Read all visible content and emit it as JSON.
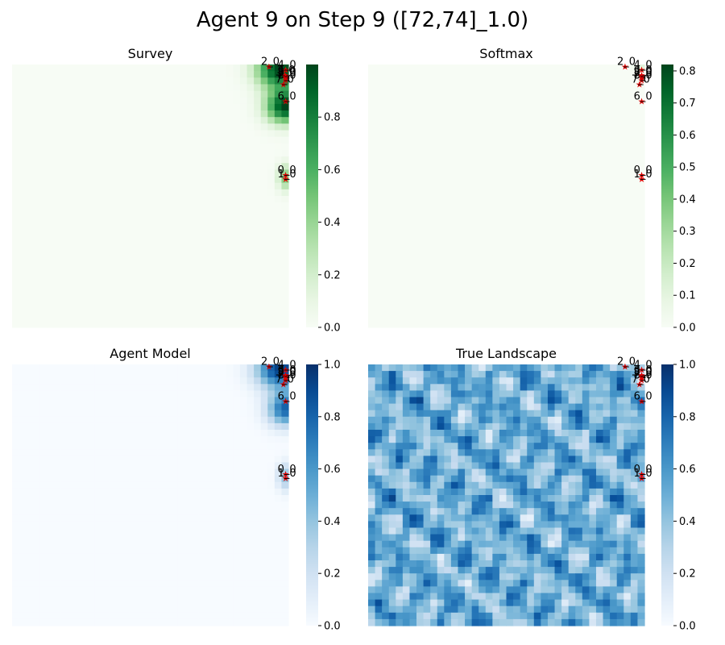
{
  "figure": {
    "title": "Agent 9 on Step 9 ([72,74]_1.0)"
  },
  "chart_data": [
    {
      "type": "heatmap",
      "title": "Survey",
      "colormap": "Greens",
      "colorbar_ticks": [
        "0.0",
        "0.2",
        "0.4",
        "0.6",
        "0.8"
      ],
      "colorbar_range": [
        0,
        1
      ],
      "tick_values": [
        0,
        0.2,
        0.4,
        0.6,
        0.8
      ],
      "blobs": [
        {
          "x": 0.97,
          "y": 0.02,
          "sx": 0.06,
          "sy": 0.05,
          "a": 1.0
        },
        {
          "x": 0.99,
          "y": 0.16,
          "sx": 0.05,
          "sy": 0.045,
          "a": 1.0
        },
        {
          "x": 0.99,
          "y": 0.43,
          "sx": 0.02,
          "sy": 0.035,
          "a": 0.45
        }
      ],
      "markers": [
        {
          "label": "2_0",
          "x": 0.93,
          "y": 0.008
        },
        {
          "label": "3_0",
          "x": 0.987,
          "y": 0.04
        },
        {
          "label": "4_0",
          "x": 0.99,
          "y": 0.02
        },
        {
          "label": "5_0",
          "x": 0.99,
          "y": 0.05
        },
        {
          "label": "8_0",
          "x": 0.99,
          "y": 0.06
        },
        {
          "label": "9_0",
          "x": 0.99,
          "y": 0.045
        },
        {
          "label": "7_0",
          "x": 0.982,
          "y": 0.075
        },
        {
          "label": "6_0",
          "x": 0.99,
          "y": 0.14
        },
        {
          "label": "0_0",
          "x": 0.99,
          "y": 0.42
        },
        {
          "label": "1_0",
          "x": 0.99,
          "y": 0.435
        }
      ]
    },
    {
      "type": "heatmap",
      "title": "Softmax",
      "colormap": "Greens",
      "colorbar_ticks": [
        "0.0",
        "0.1",
        "0.2",
        "0.3",
        "0.4",
        "0.5",
        "0.6",
        "0.7",
        "0.8"
      ],
      "colorbar_range": [
        0,
        0.82
      ],
      "tick_values": [
        0,
        0.1,
        0.2,
        0.3,
        0.4,
        0.5,
        0.6,
        0.7,
        0.8
      ],
      "blobs": [
        {
          "x": 0.985,
          "y": 0.015,
          "sx": 0.012,
          "sy": 0.012,
          "a": 0.15
        }
      ],
      "markers": [
        {
          "label": "2_0",
          "x": 0.93,
          "y": 0.008
        },
        {
          "label": "3_0",
          "x": 0.99,
          "y": 0.04
        },
        {
          "label": "4_0",
          "x": 0.99,
          "y": 0.02
        },
        {
          "label": "5_0",
          "x": 0.99,
          "y": 0.05
        },
        {
          "label": "8_0",
          "x": 0.99,
          "y": 0.06
        },
        {
          "label": "9_0",
          "x": 0.99,
          "y": 0.045
        },
        {
          "label": "7_0",
          "x": 0.982,
          "y": 0.075
        },
        {
          "label": "6_0",
          "x": 0.99,
          "y": 0.14
        },
        {
          "label": "0_0",
          "x": 0.99,
          "y": 0.42
        },
        {
          "label": "1_0",
          "x": 0.99,
          "y": 0.435
        }
      ]
    },
    {
      "type": "heatmap",
      "title": "Agent Model",
      "colormap": "Blues",
      "colorbar_ticks": [
        "0.0",
        "0.2",
        "0.4",
        "0.6",
        "0.8",
        "1.0"
      ],
      "colorbar_range": [
        0,
        1
      ],
      "tick_values": [
        0,
        0.2,
        0.4,
        0.6,
        0.8,
        1.0
      ],
      "blobs": [
        {
          "x": 0.97,
          "y": 0.02,
          "sx": 0.06,
          "sy": 0.05,
          "a": 0.95
        },
        {
          "x": 0.99,
          "y": 0.17,
          "sx": 0.045,
          "sy": 0.045,
          "a": 0.8
        },
        {
          "x": 0.99,
          "y": 0.43,
          "sx": 0.02,
          "sy": 0.035,
          "a": 0.4
        }
      ],
      "markers": [
        {
          "label": "2_0",
          "x": 0.93,
          "y": 0.008
        },
        {
          "label": "3_0",
          "x": 0.99,
          "y": 0.04
        },
        {
          "label": "4_0",
          "x": 0.99,
          "y": 0.02
        },
        {
          "label": "5_0",
          "x": 0.99,
          "y": 0.05
        },
        {
          "label": "8_0",
          "x": 0.99,
          "y": 0.06
        },
        {
          "label": "9_0",
          "x": 0.99,
          "y": 0.045
        },
        {
          "label": "7_0",
          "x": 0.982,
          "y": 0.075
        },
        {
          "label": "6_0",
          "x": 0.99,
          "y": 0.14
        },
        {
          "label": "0_0",
          "x": 0.99,
          "y": 0.42
        },
        {
          "label": "1_0",
          "x": 0.99,
          "y": 0.435
        }
      ]
    },
    {
      "type": "heatmap",
      "title": "True Landscape",
      "colormap": "Blues",
      "colorbar_ticks": [
        "0.0",
        "0.2",
        "0.4",
        "0.6",
        "0.8",
        "1.0"
      ],
      "colorbar_range": [
        0,
        1
      ],
      "tick_values": [
        0,
        0.2,
        0.4,
        0.6,
        0.8,
        1.0
      ],
      "texture": "noise",
      "markers": [
        {
          "label": "2_0",
          "x": 0.93,
          "y": 0.008
        },
        {
          "label": "3_0",
          "x": 0.99,
          "y": 0.04
        },
        {
          "label": "4_0",
          "x": 0.99,
          "y": 0.02
        },
        {
          "label": "5_0",
          "x": 0.99,
          "y": 0.05
        },
        {
          "label": "8_0",
          "x": 0.99,
          "y": 0.06
        },
        {
          "label": "9_0",
          "x": 0.99,
          "y": 0.045
        },
        {
          "label": "7_0",
          "x": 0.982,
          "y": 0.075
        },
        {
          "label": "6_0",
          "x": 0.99,
          "y": 0.14
        },
        {
          "label": "0_0",
          "x": 0.99,
          "y": 0.42
        },
        {
          "label": "1_0",
          "x": 0.99,
          "y": 0.435
        }
      ]
    }
  ]
}
